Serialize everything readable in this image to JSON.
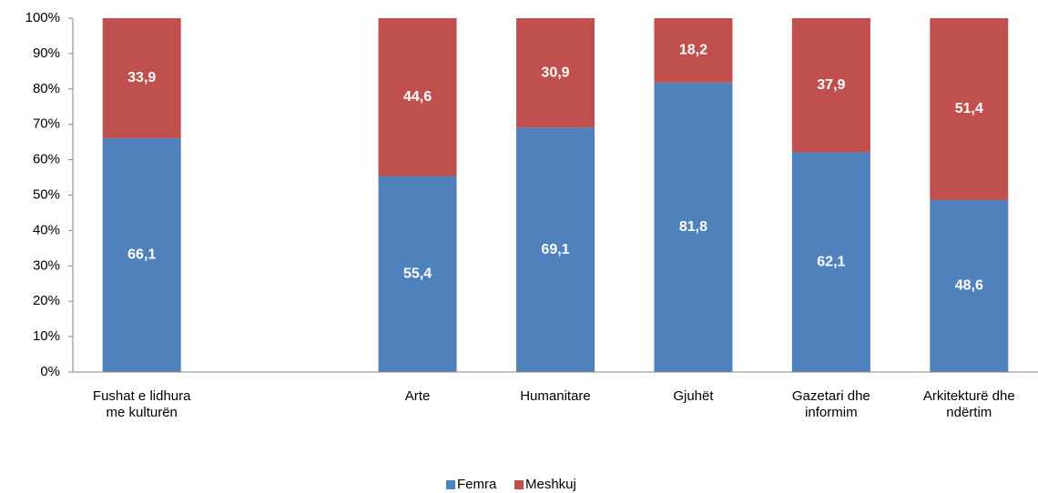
{
  "chart_data": {
    "type": "stacked_bar",
    "categories": [
      "Fushat e lidhura me kulturën",
      null,
      "Arte",
      "Humanitare",
      "Gjuhët",
      "Gazetari dhe informim",
      "Arkitekturë dhe ndërtim"
    ],
    "series": [
      {
        "name": "Femra",
        "color": "#4f81bd",
        "values": [
          66.1,
          null,
          55.4,
          69.1,
          81.8,
          62.1,
          48.6
        ],
        "value_labels": [
          "66,1",
          null,
          "55,4",
          "69,1",
          "81,8",
          "62,1",
          "48,6"
        ]
      },
      {
        "name": "Meshkuj",
        "color": "#c0504d",
        "values": [
          33.9,
          null,
          44.6,
          30.9,
          18.2,
          37.9,
          51.4
        ],
        "value_labels": [
          "33,9",
          null,
          "44,6",
          "30,9",
          "18,2",
          "37,9",
          "51,4"
        ]
      }
    ],
    "ylim": [
      0,
      100
    ],
    "yticks": [
      {
        "value": 0,
        "label": "0%"
      },
      {
        "value": 10,
        "label": "10%"
      },
      {
        "value": 20,
        "label": "20%"
      },
      {
        "value": 30,
        "label": "30%"
      },
      {
        "value": 40,
        "label": "40%"
      },
      {
        "value": 50,
        "label": "50%"
      },
      {
        "value": 60,
        "label": "60%"
      },
      {
        "value": 70,
        "label": "70%"
      },
      {
        "value": 80,
        "label": "80%"
      },
      {
        "value": 90,
        "label": "90%"
      },
      {
        "value": 100,
        "label": "100%"
      }
    ],
    "legend": "bottom"
  }
}
